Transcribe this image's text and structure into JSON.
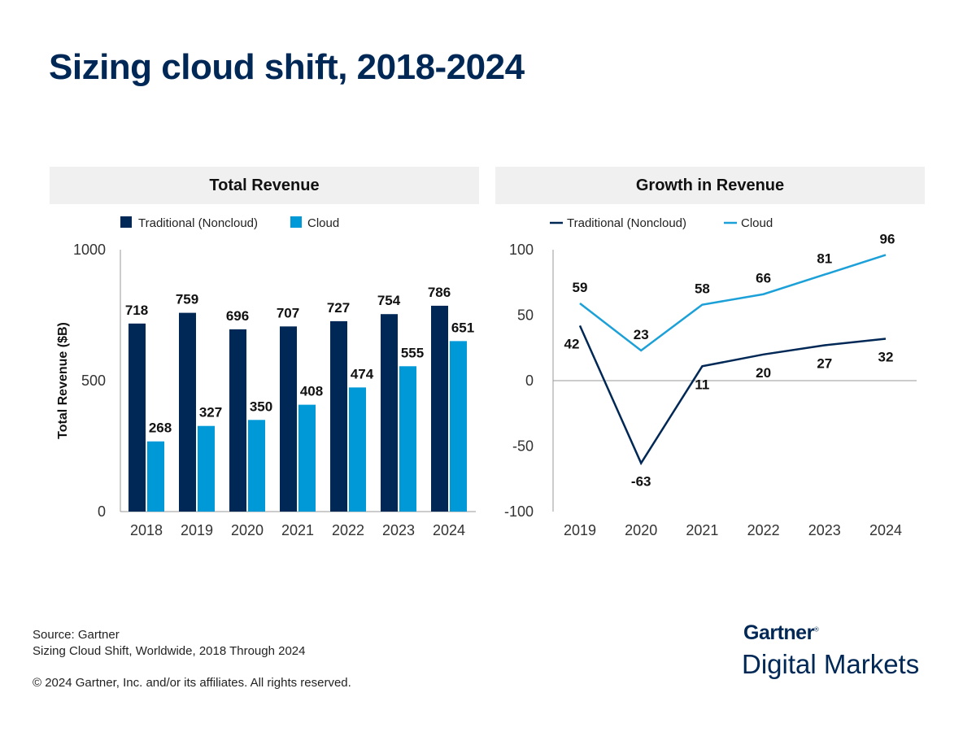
{
  "title": "Sizing cloud shift, 2018-2024",
  "colors": {
    "traditional": "#002856",
    "cloud_bar": "#0099d8",
    "cloud_line": "#1ba0d8"
  },
  "chart_data": [
    {
      "type": "bar",
      "title": "Total Revenue",
      "ylabel": "Total Revenue ($B)",
      "xlabel": "",
      "ylim": [
        0,
        1000
      ],
      "yticks": [
        0,
        500,
        1000
      ],
      "legend": "top-left",
      "categories": [
        "2018",
        "2019",
        "2020",
        "2021",
        "2022",
        "2023",
        "2024"
      ],
      "series": [
        {
          "name": "Traditional (Noncloud)",
          "values": [
            718,
            759,
            696,
            707,
            727,
            754,
            786
          ]
        },
        {
          "name": "Cloud",
          "values": [
            268,
            327,
            350,
            408,
            474,
            555,
            651
          ]
        }
      ]
    },
    {
      "type": "line",
      "title": "Growth in Revenue",
      "ylabel": "",
      "xlabel": "",
      "ylim": [
        -100,
        100
      ],
      "yticks": [
        -100,
        -50,
        0,
        50,
        100
      ],
      "legend": "top-left",
      "categories": [
        "2019",
        "2020",
        "2021",
        "2022",
        "2023",
        "2024"
      ],
      "series": [
        {
          "name": "Traditional (Noncloud)",
          "values": [
            42,
            -63,
            11,
            20,
            27,
            32
          ]
        },
        {
          "name": "Cloud",
          "values": [
            59,
            23,
            58,
            66,
            81,
            96
          ]
        }
      ]
    }
  ],
  "footer": {
    "source": "Source: Gartner",
    "report": "Sizing Cloud Shift, Worldwide, 2018 Through 2024",
    "copyright": "© 2024 Gartner, Inc. and/or its affiliates. All rights reserved."
  },
  "logo": {
    "brand": "Gartner",
    "product": "Digital Markets"
  }
}
